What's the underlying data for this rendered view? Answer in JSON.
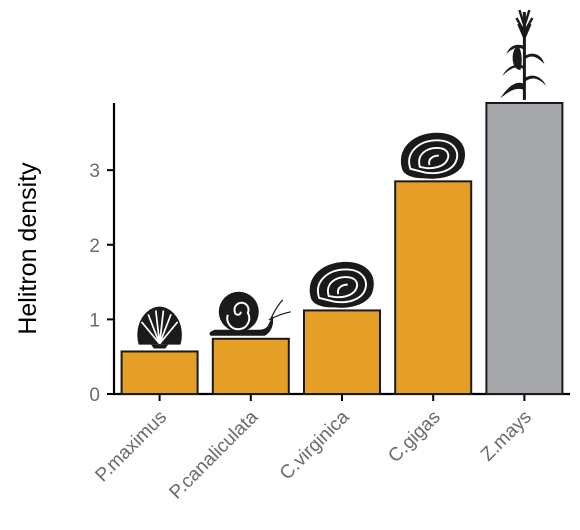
{
  "chart_data": {
    "type": "bar",
    "title": "",
    "xlabel": "",
    "ylabel": "Helitron density",
    "categories": [
      "P.maximus",
      "P.canaliculata",
      "C.virginica",
      "C.gigas",
      "Z.mays"
    ],
    "values": [
      0.57,
      0.74,
      1.12,
      2.85,
      3.9
    ],
    "bar_colors": [
      "#e59e26",
      "#e59e26",
      "#e59e26",
      "#e59e26",
      "#a6a8ab"
    ],
    "icons": [
      "scallop-icon",
      "snail-icon",
      "oyster-icon",
      "oyster-icon",
      "maize-plant-icon"
    ],
    "yticks": [
      0,
      1,
      2,
      3
    ],
    "ylim": [
      0,
      3.9
    ],
    "grid": false,
    "legend": "none"
  }
}
